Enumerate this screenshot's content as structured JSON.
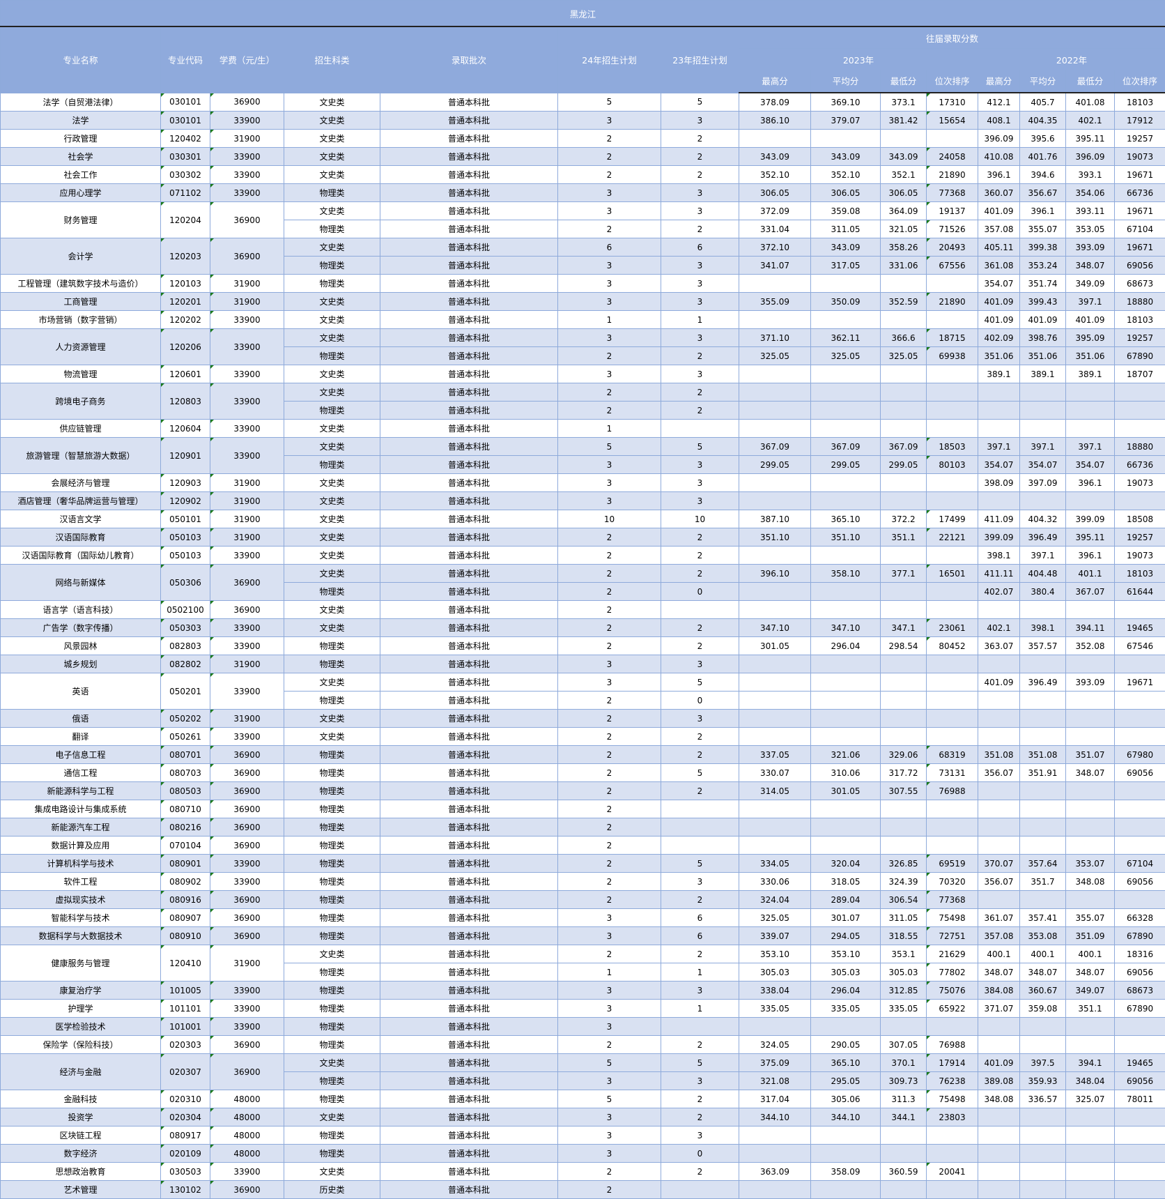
{
  "title": "黑龙江",
  "headers": {
    "name": "专业名称",
    "code": "专业代码",
    "fee": "学费（元/生）",
    "type": "招生科类",
    "batch": "录取批次",
    "plan24": "24年招生计划",
    "plan23": "23年招生计划",
    "history": "往届录取分数",
    "y2023": "2023年",
    "y2022": "2022年",
    "max": "最高分",
    "avg": "平均分",
    "min": "最低分",
    "rank": "位次排序"
  },
  "colors": {
    "header_bg": "#8faadc",
    "alt_row": "#d9e1f2",
    "border": "#8eaadb"
  },
  "majors": [
    {
      "name": "法学（自贸港法律）",
      "code": "030101",
      "fee": "36900",
      "rows": [
        [
          "文史类",
          "普通本科批",
          "5",
          "5",
          "378.09",
          "369.10",
          "373.1",
          "17310",
          "412.1",
          "405.7",
          "401.08",
          "18103"
        ]
      ]
    },
    {
      "name": "法学",
      "code": "030101",
      "fee": "33900",
      "rows": [
        [
          "文史类",
          "普通本科批",
          "3",
          "3",
          "386.10",
          "379.07",
          "381.42",
          "15654",
          "408.1",
          "404.35",
          "402.1",
          "17912"
        ]
      ]
    },
    {
      "name": "行政管理",
      "code": "120402",
      "fee": "31900",
      "rows": [
        [
          "文史类",
          "普通本科批",
          "2",
          "2",
          "",
          "",
          "",
          "",
          "396.09",
          "395.6",
          "395.11",
          "19257"
        ]
      ]
    },
    {
      "name": "社会学",
      "code": "030301",
      "fee": "33900",
      "rows": [
        [
          "文史类",
          "普通本科批",
          "2",
          "2",
          "343.09",
          "343.09",
          "343.09",
          "24058",
          "410.08",
          "401.76",
          "396.09",
          "19073"
        ]
      ]
    },
    {
      "name": "社会工作",
      "code": "030302",
      "fee": "33900",
      "rows": [
        [
          "文史类",
          "普通本科批",
          "2",
          "2",
          "352.10",
          "352.10",
          "352.1",
          "21890",
          "396.1",
          "394.6",
          "393.1",
          "19671"
        ]
      ]
    },
    {
      "name": "应用心理学",
      "code": "071102",
      "fee": "33900",
      "rows": [
        [
          "物理类",
          "普通本科批",
          "3",
          "3",
          "306.05",
          "306.05",
          "306.05",
          "77368",
          "360.07",
          "356.67",
          "354.06",
          "66736"
        ]
      ]
    },
    {
      "name": "财务管理",
      "code": "120204",
      "fee": "36900",
      "rows": [
        [
          "文史类",
          "普通本科批",
          "3",
          "3",
          "372.09",
          "359.08",
          "364.09",
          "19137",
          "401.09",
          "396.1",
          "393.11",
          "19671"
        ],
        [
          "物理类",
          "普通本科批",
          "2",
          "2",
          "331.04",
          "311.05",
          "321.05",
          "71526",
          "357.08",
          "355.07",
          "353.05",
          "67104"
        ]
      ]
    },
    {
      "name": "会计学",
      "code": "120203",
      "fee": "36900",
      "rows": [
        [
          "文史类",
          "普通本科批",
          "6",
          "6",
          "372.10",
          "343.09",
          "358.26",
          "20493",
          "405.11",
          "399.38",
          "393.09",
          "19671"
        ],
        [
          "物理类",
          "普通本科批",
          "3",
          "3",
          "341.07",
          "317.05",
          "331.06",
          "67556",
          "361.08",
          "353.24",
          "348.07",
          "69056"
        ]
      ]
    },
    {
      "name": "工程管理（建筑数字技术与造价）",
      "code": "120103",
      "fee": "31900",
      "rows": [
        [
          "物理类",
          "普通本科批",
          "3",
          "3",
          "",
          "",
          "",
          "",
          "354.07",
          "351.74",
          "349.09",
          "68673"
        ]
      ]
    },
    {
      "name": "工商管理",
      "code": "120201",
      "fee": "31900",
      "rows": [
        [
          "文史类",
          "普通本科批",
          "3",
          "3",
          "355.09",
          "350.09",
          "352.59",
          "21890",
          "401.09",
          "399.43",
          "397.1",
          "18880"
        ]
      ]
    },
    {
      "name": "市场营销（数字营销）",
      "code": "120202",
      "fee": "33900",
      "rows": [
        [
          "文史类",
          "普通本科批",
          "1",
          "1",
          "",
          "",
          "",
          "",
          "401.09",
          "401.09",
          "401.09",
          "18103"
        ]
      ]
    },
    {
      "name": "人力资源管理",
      "code": "120206",
      "fee": "33900",
      "rows": [
        [
          "文史类",
          "普通本科批",
          "3",
          "3",
          "371.10",
          "362.11",
          "366.6",
          "18715",
          "402.09",
          "398.76",
          "395.09",
          "19257"
        ],
        [
          "物理类",
          "普通本科批",
          "2",
          "2",
          "325.05",
          "325.05",
          "325.05",
          "69938",
          "351.06",
          "351.06",
          "351.06",
          "67890"
        ]
      ]
    },
    {
      "name": "物流管理",
      "code": "120601",
      "fee": "33900",
      "rows": [
        [
          "文史类",
          "普通本科批",
          "3",
          "3",
          "",
          "",
          "",
          "",
          "389.1",
          "389.1",
          "389.1",
          "18707"
        ]
      ]
    },
    {
      "name": "跨境电子商务",
      "code": "120803",
      "fee": "33900",
      "rows": [
        [
          "文史类",
          "普通本科批",
          "2",
          "2",
          "",
          "",
          "",
          "",
          "",
          "",
          "",
          ""
        ],
        [
          "物理类",
          "普通本科批",
          "2",
          "2",
          "",
          "",
          "",
          "",
          "",
          "",
          "",
          ""
        ]
      ]
    },
    {
      "name": "供应链管理",
      "code": "120604",
      "fee": "33900",
      "rows": [
        [
          "文史类",
          "普通本科批",
          "1",
          "",
          "",
          "",
          "",
          "",
          "",
          "",
          "",
          ""
        ]
      ]
    },
    {
      "name": "旅游管理（智慧旅游大数据）",
      "code": "120901",
      "fee": "33900",
      "rows": [
        [
          "文史类",
          "普通本科批",
          "5",
          "5",
          "367.09",
          "367.09",
          "367.09",
          "18503",
          "397.1",
          "397.1",
          "397.1",
          "18880"
        ],
        [
          "物理类",
          "普通本科批",
          "3",
          "3",
          "299.05",
          "299.05",
          "299.05",
          "80103",
          "354.07",
          "354.07",
          "354.07",
          "66736"
        ]
      ]
    },
    {
      "name": "会展经济与管理",
      "code": "120903",
      "fee": "31900",
      "rows": [
        [
          "文史类",
          "普通本科批",
          "3",
          "3",
          "",
          "",
          "",
          "",
          "398.09",
          "397.09",
          "396.1",
          "19073"
        ]
      ]
    },
    {
      "name": "酒店管理（奢华品牌运营与管理）",
      "code": "120902",
      "fee": "31900",
      "rows": [
        [
          "文史类",
          "普通本科批",
          "3",
          "3",
          "",
          "",
          "",
          "",
          "",
          "",
          "",
          ""
        ]
      ]
    },
    {
      "name": "汉语言文学",
      "code": "050101",
      "fee": "31900",
      "rows": [
        [
          "文史类",
          "普通本科批",
          "10",
          "10",
          "387.10",
          "365.10",
          "372.2",
          "17499",
          "411.09",
          "404.32",
          "399.09",
          "18508"
        ]
      ]
    },
    {
      "name": "汉语国际教育",
      "code": "050103",
      "fee": "31900",
      "rows": [
        [
          "文史类",
          "普通本科批",
          "2",
          "2",
          "351.10",
          "351.10",
          "351.1",
          "22121",
          "399.09",
          "396.49",
          "395.11",
          "19257"
        ]
      ]
    },
    {
      "name": "汉语国际教育（国际幼儿教育）",
      "code": "050103",
      "fee": "33900",
      "rows": [
        [
          "文史类",
          "普通本科批",
          "2",
          "2",
          "",
          "",
          "",
          "",
          "398.1",
          "397.1",
          "396.1",
          "19073"
        ]
      ]
    },
    {
      "name": "网络与新媒体",
      "code": "050306",
      "fee": "36900",
      "rows": [
        [
          "文史类",
          "普通本科批",
          "2",
          "2",
          "396.10",
          "358.10",
          "377.1",
          "16501",
          "411.11",
          "404.48",
          "401.1",
          "18103"
        ],
        [
          "物理类",
          "普通本科批",
          "2",
          "0",
          "",
          "",
          "",
          "",
          "402.07",
          "380.4",
          "367.07",
          "61644"
        ]
      ]
    },
    {
      "name": "语言学（语言科技）",
      "code": "0502100",
      "fee": "36900",
      "rows": [
        [
          "文史类",
          "普通本科批",
          "2",
          "",
          "",
          "",
          "",
          "",
          "",
          "",
          "",
          ""
        ]
      ]
    },
    {
      "name": "广告学（数字传播）",
      "code": "050303",
      "fee": "33900",
      "rows": [
        [
          "文史类",
          "普通本科批",
          "2",
          "2",
          "347.10",
          "347.10",
          "347.1",
          "23061",
          "402.1",
          "398.1",
          "394.11",
          "19465"
        ]
      ]
    },
    {
      "name": "风景园林",
      "code": "082803",
      "fee": "33900",
      "rows": [
        [
          "物理类",
          "普通本科批",
          "2",
          "2",
          "301.05",
          "296.04",
          "298.54",
          "80452",
          "363.07",
          "357.57",
          "352.08",
          "67546"
        ]
      ]
    },
    {
      "name": "城乡规划",
      "code": "082802",
      "fee": "31900",
      "rows": [
        [
          "物理类",
          "普通本科批",
          "3",
          "3",
          "",
          "",
          "",
          "",
          "",
          "",
          "",
          ""
        ]
      ]
    },
    {
      "name": "英语",
      "code": "050201",
      "fee": "33900",
      "rows": [
        [
          "文史类",
          "普通本科批",
          "3",
          "5",
          "",
          "",
          "",
          "",
          "401.09",
          "396.49",
          "393.09",
          "19671"
        ],
        [
          "物理类",
          "普通本科批",
          "2",
          "0",
          "",
          "",
          "",
          "",
          "",
          "",
          "",
          ""
        ]
      ]
    },
    {
      "name": "俄语",
      "code": "050202",
      "fee": "31900",
      "rows": [
        [
          "文史类",
          "普通本科批",
          "2",
          "3",
          "",
          "",
          "",
          "",
          "",
          "",
          "",
          ""
        ]
      ]
    },
    {
      "name": "翻译",
      "code": "050261",
      "fee": "33900",
      "rows": [
        [
          "文史类",
          "普通本科批",
          "2",
          "2",
          "",
          "",
          "",
          "",
          "",
          "",
          "",
          ""
        ]
      ]
    },
    {
      "name": "电子信息工程",
      "code": "080701",
      "fee": "36900",
      "rows": [
        [
          "物理类",
          "普通本科批",
          "2",
          "2",
          "337.05",
          "321.06",
          "329.06",
          "68319",
          "351.08",
          "351.08",
          "351.07",
          "67980"
        ]
      ]
    },
    {
      "name": "通信工程",
      "code": "080703",
      "fee": "36900",
      "rows": [
        [
          "物理类",
          "普通本科批",
          "2",
          "5",
          "330.07",
          "310.06",
          "317.72",
          "73131",
          "356.07",
          "351.91",
          "348.07",
          "69056"
        ]
      ]
    },
    {
      "name": "新能源科学与工程",
      "code": "080503",
      "fee": "36900",
      "rows": [
        [
          "物理类",
          "普通本科批",
          "2",
          "2",
          "314.05",
          "301.05",
          "307.55",
          "76988",
          "",
          "",
          "",
          ""
        ]
      ]
    },
    {
      "name": "集成电路设计与集成系统",
      "code": "080710",
      "fee": "36900",
      "rows": [
        [
          "物理类",
          "普通本科批",
          "2",
          "",
          "",
          "",
          "",
          "",
          "",
          "",
          "",
          ""
        ]
      ]
    },
    {
      "name": "新能源汽车工程",
      "code": "080216",
      "fee": "36900",
      "rows": [
        [
          "物理类",
          "普通本科批",
          "2",
          "",
          "",
          "",
          "",
          "",
          "",
          "",
          "",
          ""
        ]
      ]
    },
    {
      "name": "数据计算及应用",
      "code": "070104",
      "fee": "36900",
      "rows": [
        [
          "物理类",
          "普通本科批",
          "2",
          "",
          "",
          "",
          "",
          "",
          "",
          "",
          "",
          ""
        ]
      ]
    },
    {
      "name": "计算机科学与技术",
      "code": "080901",
      "fee": "33900",
      "rows": [
        [
          "物理类",
          "普通本科批",
          "2",
          "5",
          "334.05",
          "320.04",
          "326.85",
          "69519",
          "370.07",
          "357.64",
          "353.07",
          "67104"
        ]
      ]
    },
    {
      "name": "软件工程",
      "code": "080902",
      "fee": "33900",
      "rows": [
        [
          "物理类",
          "普通本科批",
          "2",
          "3",
          "330.06",
          "318.05",
          "324.39",
          "70320",
          "356.07",
          "351.7",
          "348.08",
          "69056"
        ]
      ]
    },
    {
      "name": "虚拟现实技术",
      "code": "080916",
      "fee": "36900",
      "rows": [
        [
          "物理类",
          "普通本科批",
          "2",
          "2",
          "324.04",
          "289.04",
          "306.54",
          "77368",
          "",
          "",
          "",
          ""
        ]
      ]
    },
    {
      "name": "智能科学与技术",
      "code": "080907",
      "fee": "36900",
      "rows": [
        [
          "物理类",
          "普通本科批",
          "3",
          "6",
          "325.05",
          "301.07",
          "311.05",
          "75498",
          "361.07",
          "357.41",
          "355.07",
          "66328"
        ]
      ]
    },
    {
      "name": "数据科学与大数据技术",
      "code": "080910",
      "fee": "36900",
      "rows": [
        [
          "物理类",
          "普通本科批",
          "3",
          "6",
          "339.07",
          "294.05",
          "318.55",
          "72751",
          "357.08",
          "353.08",
          "351.09",
          "67890"
        ]
      ]
    },
    {
      "name": "健康服务与管理",
      "code": "120410",
      "fee": "31900",
      "rows": [
        [
          "文史类",
          "普通本科批",
          "2",
          "2",
          "353.10",
          "353.10",
          "353.1",
          "21629",
          "400.1",
          "400.1",
          "400.1",
          "18316"
        ],
        [
          "物理类",
          "普通本科批",
          "1",
          "1",
          "305.03",
          "305.03",
          "305.03",
          "77802",
          "348.07",
          "348.07",
          "348.07",
          "69056"
        ]
      ]
    },
    {
      "name": "康复治疗学",
      "code": "101005",
      "fee": "33900",
      "rows": [
        [
          "物理类",
          "普通本科批",
          "3",
          "3",
          "338.04",
          "296.04",
          "312.85",
          "75076",
          "384.08",
          "360.67",
          "349.07",
          "68673"
        ]
      ]
    },
    {
      "name": "护理学",
      "code": "101101",
      "fee": "33900",
      "rows": [
        [
          "物理类",
          "普通本科批",
          "3",
          "1",
          "335.05",
          "335.05",
          "335.05",
          "65922",
          "371.07",
          "359.08",
          "351.1",
          "67890"
        ]
      ]
    },
    {
      "name": "医学检验技术",
      "code": "101001",
      "fee": "33900",
      "rows": [
        [
          "物理类",
          "普通本科批",
          "3",
          "",
          "",
          "",
          "",
          "",
          "",
          "",
          "",
          ""
        ]
      ]
    },
    {
      "name": "保险学（保险科技）",
      "code": "020303",
      "fee": "36900",
      "rows": [
        [
          "物理类",
          "普通本科批",
          "2",
          "2",
          "324.05",
          "290.05",
          "307.05",
          "76988",
          "",
          "",
          "",
          ""
        ]
      ]
    },
    {
      "name": "经济与金融",
      "code": "020307",
      "fee": "36900",
      "rows": [
        [
          "文史类",
          "普通本科批",
          "5",
          "5",
          "375.09",
          "365.10",
          "370.1",
          "17914",
          "401.09",
          "397.5",
          "394.1",
          "19465"
        ],
        [
          "物理类",
          "普通本科批",
          "3",
          "3",
          "321.08",
          "295.05",
          "309.73",
          "76238",
          "389.08",
          "359.93",
          "348.04",
          "69056"
        ]
      ]
    },
    {
      "name": "金融科技",
      "code": "020310",
      "fee": "48000",
      "rows": [
        [
          "物理类",
          "普通本科批",
          "5",
          "2",
          "317.04",
          "305.06",
          "311.3",
          "75498",
          "348.08",
          "336.57",
          "325.07",
          "78011"
        ]
      ]
    },
    {
      "name": "投资学",
      "code": "020304",
      "fee": "48000",
      "rows": [
        [
          "文史类",
          "普通本科批",
          "3",
          "2",
          "344.10",
          "344.10",
          "344.1",
          "23803",
          "",
          "",
          "",
          ""
        ]
      ]
    },
    {
      "name": "区块链工程",
      "code": "080917",
      "fee": "48000",
      "rows": [
        [
          "物理类",
          "普通本科批",
          "3",
          "3",
          "",
          "",
          "",
          "",
          "",
          "",
          "",
          ""
        ]
      ]
    },
    {
      "name": "数字经济",
      "code": "020109",
      "fee": "48000",
      "rows": [
        [
          "物理类",
          "普通本科批",
          "3",
          "0",
          "",
          "",
          "",
          "",
          "",
          "",
          "",
          ""
        ]
      ]
    },
    {
      "name": "思想政治教育",
      "code": "030503",
      "fee": "33900",
      "rows": [
        [
          "文史类",
          "普通本科批",
          "2",
          "2",
          "363.09",
          "358.09",
          "360.59",
          "20041",
          "",
          "",
          "",
          ""
        ]
      ]
    },
    {
      "name": "艺术管理",
      "code": "130102",
      "fee": "36900",
      "rows": [
        [
          "历史类",
          "普通本科批",
          "2",
          "",
          "",
          "",
          "",
          "",
          "",
          "",
          "",
          ""
        ]
      ]
    }
  ]
}
